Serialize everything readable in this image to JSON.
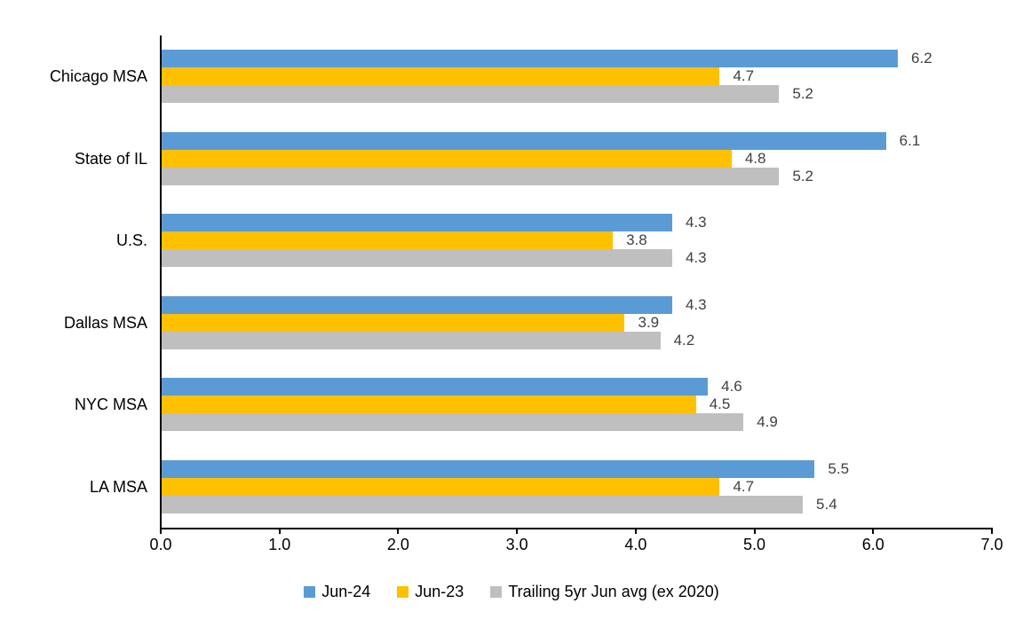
{
  "chart_data": {
    "type": "bar",
    "orientation": "horizontal",
    "title": "",
    "categories": [
      "Chicago MSA",
      "State of IL",
      "U.S.",
      "Dallas MSA",
      "NYC MSA",
      "LA MSA"
    ],
    "series": [
      {
        "name": "Jun-24",
        "color": "#5B9BD5",
        "values": [
          6.2,
          6.1,
          4.3,
          4.3,
          4.6,
          5.5
        ]
      },
      {
        "name": "Jun-23",
        "color": "#FFC000",
        "values": [
          4.7,
          4.8,
          3.8,
          3.9,
          4.5,
          4.7
        ]
      },
      {
        "name": "Trailing 5yr Jun avg (ex 2020)",
        "color": "#BFBFBF",
        "values": [
          5.2,
          5.2,
          4.3,
          4.2,
          4.9,
          5.4
        ]
      }
    ],
    "xlim": [
      0.0,
      7.0
    ],
    "x_tick_labels": [
      "0.0",
      "1.0",
      "2.0",
      "3.0",
      "4.0",
      "5.0",
      "6.0",
      "7.0"
    ],
    "data_labels": true,
    "legend_position": "bottom",
    "grid": false
  },
  "style": {
    "axis_color": "#000000",
    "text_color": "#000000",
    "value_label_color": "#404040",
    "background": "#FFFFFF"
  }
}
